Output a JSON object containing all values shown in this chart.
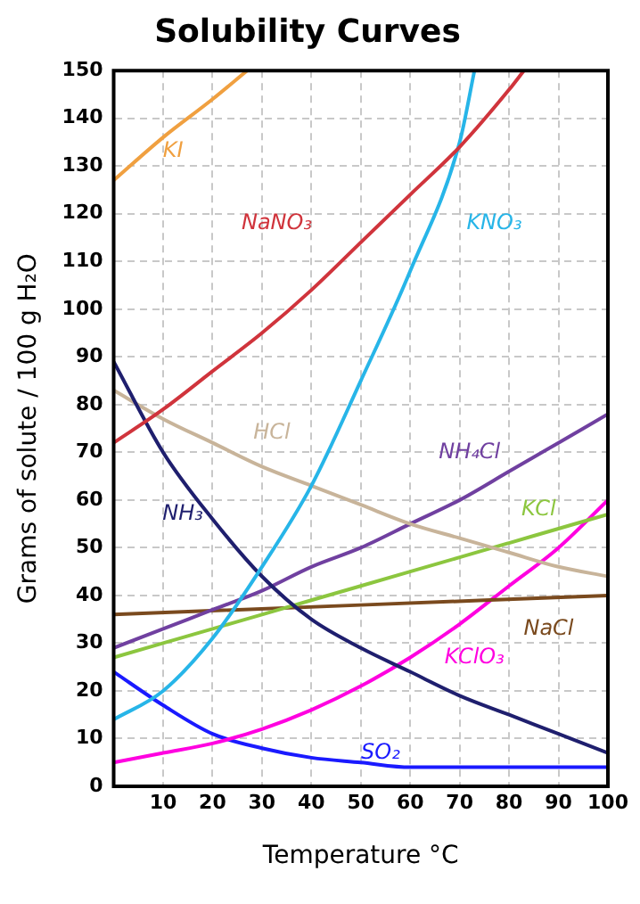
{
  "chart_data": {
    "type": "line",
    "title": "Solubility Curves",
    "xlabel": "Temperature °C",
    "ylabel": "Grams of solute / 100 g H₂O",
    "xlim": [
      0,
      100
    ],
    "xticks": [
      {
        "value": 0,
        "label": null
      },
      10,
      20,
      30,
      40,
      50,
      60,
      70,
      80,
      90,
      100
    ],
    "ylim": [
      0,
      150
    ],
    "yticks": [
      0,
      10,
      20,
      30,
      40,
      50,
      60,
      70,
      80,
      90,
      100,
      110,
      120,
      130,
      140,
      150
    ],
    "grid": true,
    "legend": false,
    "marker": "none",
    "line_style": "solid",
    "series": [
      {
        "name": "KI",
        "color": "#f0a040",
        "x": [
          0,
          10,
          20,
          27
        ],
        "values": [
          127,
          136,
          144,
          150
        ]
      },
      {
        "name": "NaNO₃",
        "color": "#d0343c",
        "x": [
          0,
          10,
          20,
          30,
          40,
          50,
          60,
          70,
          80,
          83
        ],
        "values": [
          72,
          79,
          87,
          95,
          104,
          114,
          124,
          134,
          146,
          150
        ]
      },
      {
        "name": "KNO₃",
        "color": "#27b5e8",
        "x": [
          0,
          10,
          20,
          30,
          40,
          50,
          60,
          70,
          73
        ],
        "values": [
          14,
          20,
          31,
          46,
          63,
          85,
          108,
          135,
          150
        ]
      },
      {
        "name": "NH₃",
        "color": "#1f1f6e",
        "x": [
          0,
          10,
          20,
          30,
          40,
          50,
          60,
          70,
          80,
          90,
          100
        ],
        "values": [
          89,
          70,
          56,
          44,
          35,
          29,
          24,
          19,
          15,
          11,
          7
        ]
      },
      {
        "name": "HCl",
        "color": "#c8b49a",
        "x": [
          0,
          10,
          20,
          30,
          40,
          50,
          60,
          70,
          80,
          90,
          100
        ],
        "values": [
          83,
          77,
          72,
          67,
          63,
          59,
          55,
          52,
          49,
          46,
          44
        ]
      },
      {
        "name": "NH₄Cl",
        "color": "#7040a0",
        "x": [
          0,
          10,
          20,
          30,
          40,
          50,
          60,
          70,
          80,
          90,
          100
        ],
        "values": [
          29,
          33,
          37,
          41,
          46,
          50,
          55,
          60,
          66,
          72,
          78
        ]
      },
      {
        "name": "KCl",
        "color": "#8cc63f",
        "x": [
          0,
          10,
          20,
          30,
          40,
          50,
          60,
          70,
          80,
          90,
          100
        ],
        "values": [
          27,
          30,
          33,
          36,
          39,
          42,
          45,
          48,
          51,
          54,
          57
        ]
      },
      {
        "name": "NaCl",
        "color": "#7a4a1e",
        "x": [
          0,
          50,
          100
        ],
        "values": [
          36,
          38,
          40
        ]
      },
      {
        "name": "KClO₃",
        "color": "#ff00e0",
        "x": [
          0,
          10,
          20,
          30,
          40,
          50,
          60,
          70,
          80,
          90,
          100
        ],
        "values": [
          5,
          7,
          9,
          12,
          16,
          21,
          27,
          34,
          42,
          50,
          60
        ]
      },
      {
        "name": "SO₂",
        "color": "#1a1aff",
        "x": [
          0,
          10,
          20,
          30,
          40,
          50,
          60,
          70,
          80,
          90,
          100
        ],
        "values": [
          24,
          17,
          11,
          8,
          6,
          5,
          4,
          4,
          4,
          4,
          4
        ]
      }
    ]
  }
}
